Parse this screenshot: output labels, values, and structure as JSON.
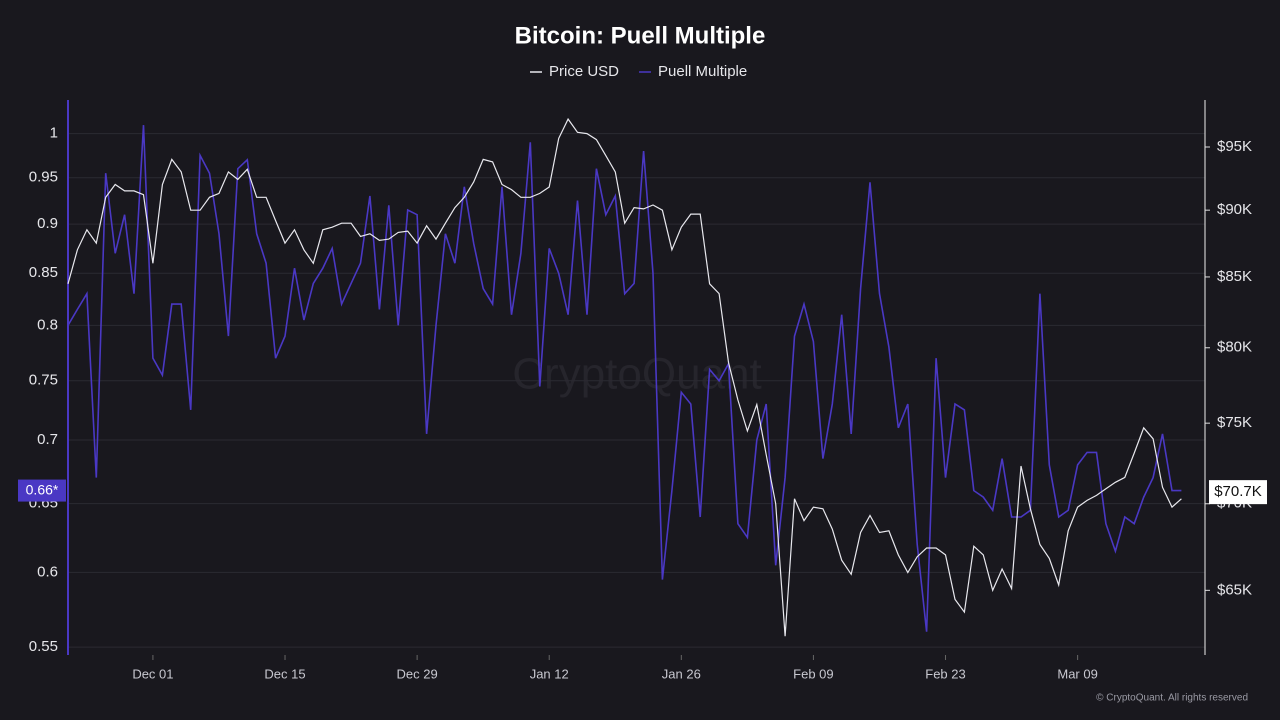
{
  "chart_data": {
    "type": "line",
    "title": "Bitcoin: Puell Multiple",
    "watermark": "CryptoQuant",
    "credit": "© CryptoQuant. All rights reserved",
    "x": [
      0,
      1,
      2,
      3,
      4,
      5,
      6,
      7,
      8,
      9,
      10,
      11,
      12,
      13,
      14,
      15,
      16,
      17,
      18,
      19,
      20,
      21,
      22,
      23,
      24,
      25,
      26,
      27,
      28,
      29,
      30,
      31,
      32,
      33,
      34,
      35,
      36,
      37,
      38,
      39,
      40,
      41,
      42,
      43,
      44,
      45,
      46,
      47,
      48,
      49,
      50,
      51,
      52,
      53,
      54,
      55,
      56,
      57,
      58,
      59,
      60,
      61,
      62,
      63,
      64,
      65,
      66,
      67,
      68,
      69,
      70,
      71,
      72,
      73,
      74,
      75,
      76,
      77,
      78,
      79,
      80,
      81,
      82,
      83,
      84,
      85,
      86,
      87,
      88,
      89,
      90,
      91,
      92,
      93,
      94,
      95,
      96,
      97,
      98,
      99,
      100,
      101,
      102,
      103,
      104,
      105,
      106,
      107,
      108,
      109,
      110,
      111,
      112,
      113,
      114,
      115,
      116,
      117,
      118
    ],
    "xlim": [
      0,
      120.5
    ],
    "xticks": [
      {
        "value": 9,
        "label": "Dec 01"
      },
      {
        "value": 23,
        "label": "Dec 15"
      },
      {
        "value": 37,
        "label": "Dec 29"
      },
      {
        "value": 51,
        "label": "Jan 12"
      },
      {
        "value": 65,
        "label": "Jan 26"
      },
      {
        "value": 79,
        "label": "Feb 09"
      },
      {
        "value": 93,
        "label": "Feb 23"
      },
      {
        "value": 107,
        "label": "Mar 09"
      }
    ],
    "ylim": [
      0.545,
      1.04
    ],
    "ylog": true,
    "yticks": [
      0.55,
      0.6,
      0.65,
      0.7,
      0.75,
      0.8,
      0.85,
      0.9,
      0.95,
      1
    ],
    "y2lim": [
      61500,
      98900
    ],
    "y2log": true,
    "y2ticks": [
      {
        "value": 65000,
        "label": "$65K"
      },
      {
        "value": 70000,
        "label": "$70K"
      },
      {
        "value": 75000,
        "label": "$75K"
      },
      {
        "value": 80000,
        "label": "$80K"
      },
      {
        "value": 85000,
        "label": "$85K"
      },
      {
        "value": 90000,
        "label": "$90K"
      },
      {
        "value": 95000,
        "label": "$95K"
      }
    ],
    "y_marker": {
      "value": 0.66,
      "label": "0.66*"
    },
    "y2_marker": {
      "value": 70700,
      "label": "$70.7K"
    },
    "grid": true,
    "series": [
      {
        "name": "Price USD",
        "color": "#e8e8ee",
        "axis": "y2",
        "values": [
          84500,
          87000,
          88500,
          87500,
          91000,
          92000,
          91500,
          91500,
          91200,
          86000,
          92000,
          94000,
          93000,
          90000,
          90000,
          91000,
          91300,
          93000,
          92400,
          93200,
          91000,
          91000,
          89200,
          87500,
          88500,
          87000,
          86000,
          88500,
          88700,
          89000,
          89000,
          88000,
          88200,
          87700,
          87800,
          88300,
          88400,
          87500,
          88800,
          87800,
          89000,
          90200,
          91000,
          92200,
          94000,
          93800,
          92000,
          91600,
          91000,
          91000,
          91300,
          91800,
          95700,
          97300,
          96200,
          96100,
          95600,
          94300,
          93000,
          89000,
          90200,
          90100,
          90400,
          90000,
          87000,
          88700,
          89700,
          89700,
          84500,
          83800,
          79000,
          76500,
          74500,
          76200,
          73000,
          70000,
          62500,
          70300,
          69000,
          69800,
          69700,
          68500,
          66700,
          65900,
          68300,
          69300,
          68300,
          68400,
          67000,
          66000,
          66900,
          67400,
          67400,
          67000,
          64500,
          63800,
          67500,
          67000,
          65000,
          66200,
          65100,
          72300,
          69700,
          67600,
          66800,
          65300,
          68400,
          69800,
          70200,
          70500,
          70900,
          71300,
          71600,
          73100,
          74700,
          74000,
          71000,
          69800,
          70300
        ]
      },
      {
        "name": "Puell Multiple",
        "color": "#4a38c4",
        "values": [
          0.8,
          0.815,
          0.83,
          0.67,
          0.955,
          0.87,
          0.91,
          0.83,
          1.01,
          0.77,
          0.755,
          0.82,
          0.82,
          0.725,
          0.975,
          0.955,
          0.89,
          0.79,
          0.96,
          0.97,
          0.89,
          0.86,
          0.77,
          0.79,
          0.855,
          0.805,
          0.84,
          0.855,
          0.875,
          0.82,
          0.84,
          0.86,
          0.93,
          0.815,
          0.92,
          0.8,
          0.915,
          0.91,
          0.705,
          0.8,
          0.89,
          0.86,
          0.94,
          0.88,
          0.835,
          0.82,
          0.94,
          0.81,
          0.87,
          0.99,
          0.745,
          0.875,
          0.85,
          0.81,
          0.925,
          0.81,
          0.96,
          0.91,
          0.93,
          0.83,
          0.84,
          0.98,
          0.85,
          0.595,
          0.66,
          0.74,
          0.73,
          0.64,
          0.76,
          0.75,
          0.765,
          0.635,
          0.625,
          0.7,
          0.73,
          0.605,
          0.67,
          0.79,
          0.82,
          0.785,
          0.685,
          0.73,
          0.81,
          0.705,
          0.835,
          0.945,
          0.83,
          0.78,
          0.71,
          0.73,
          0.62,
          0.56,
          0.77,
          0.67,
          0.73,
          0.725,
          0.66,
          0.655,
          0.645,
          0.685,
          0.64,
          0.64,
          0.645,
          0.83,
          0.68,
          0.64,
          0.645,
          0.68,
          0.69,
          0.69,
          0.635,
          0.615,
          0.64,
          0.635,
          0.655,
          0.67,
          0.705,
          0.66,
          0.66
        ]
      }
    ]
  }
}
